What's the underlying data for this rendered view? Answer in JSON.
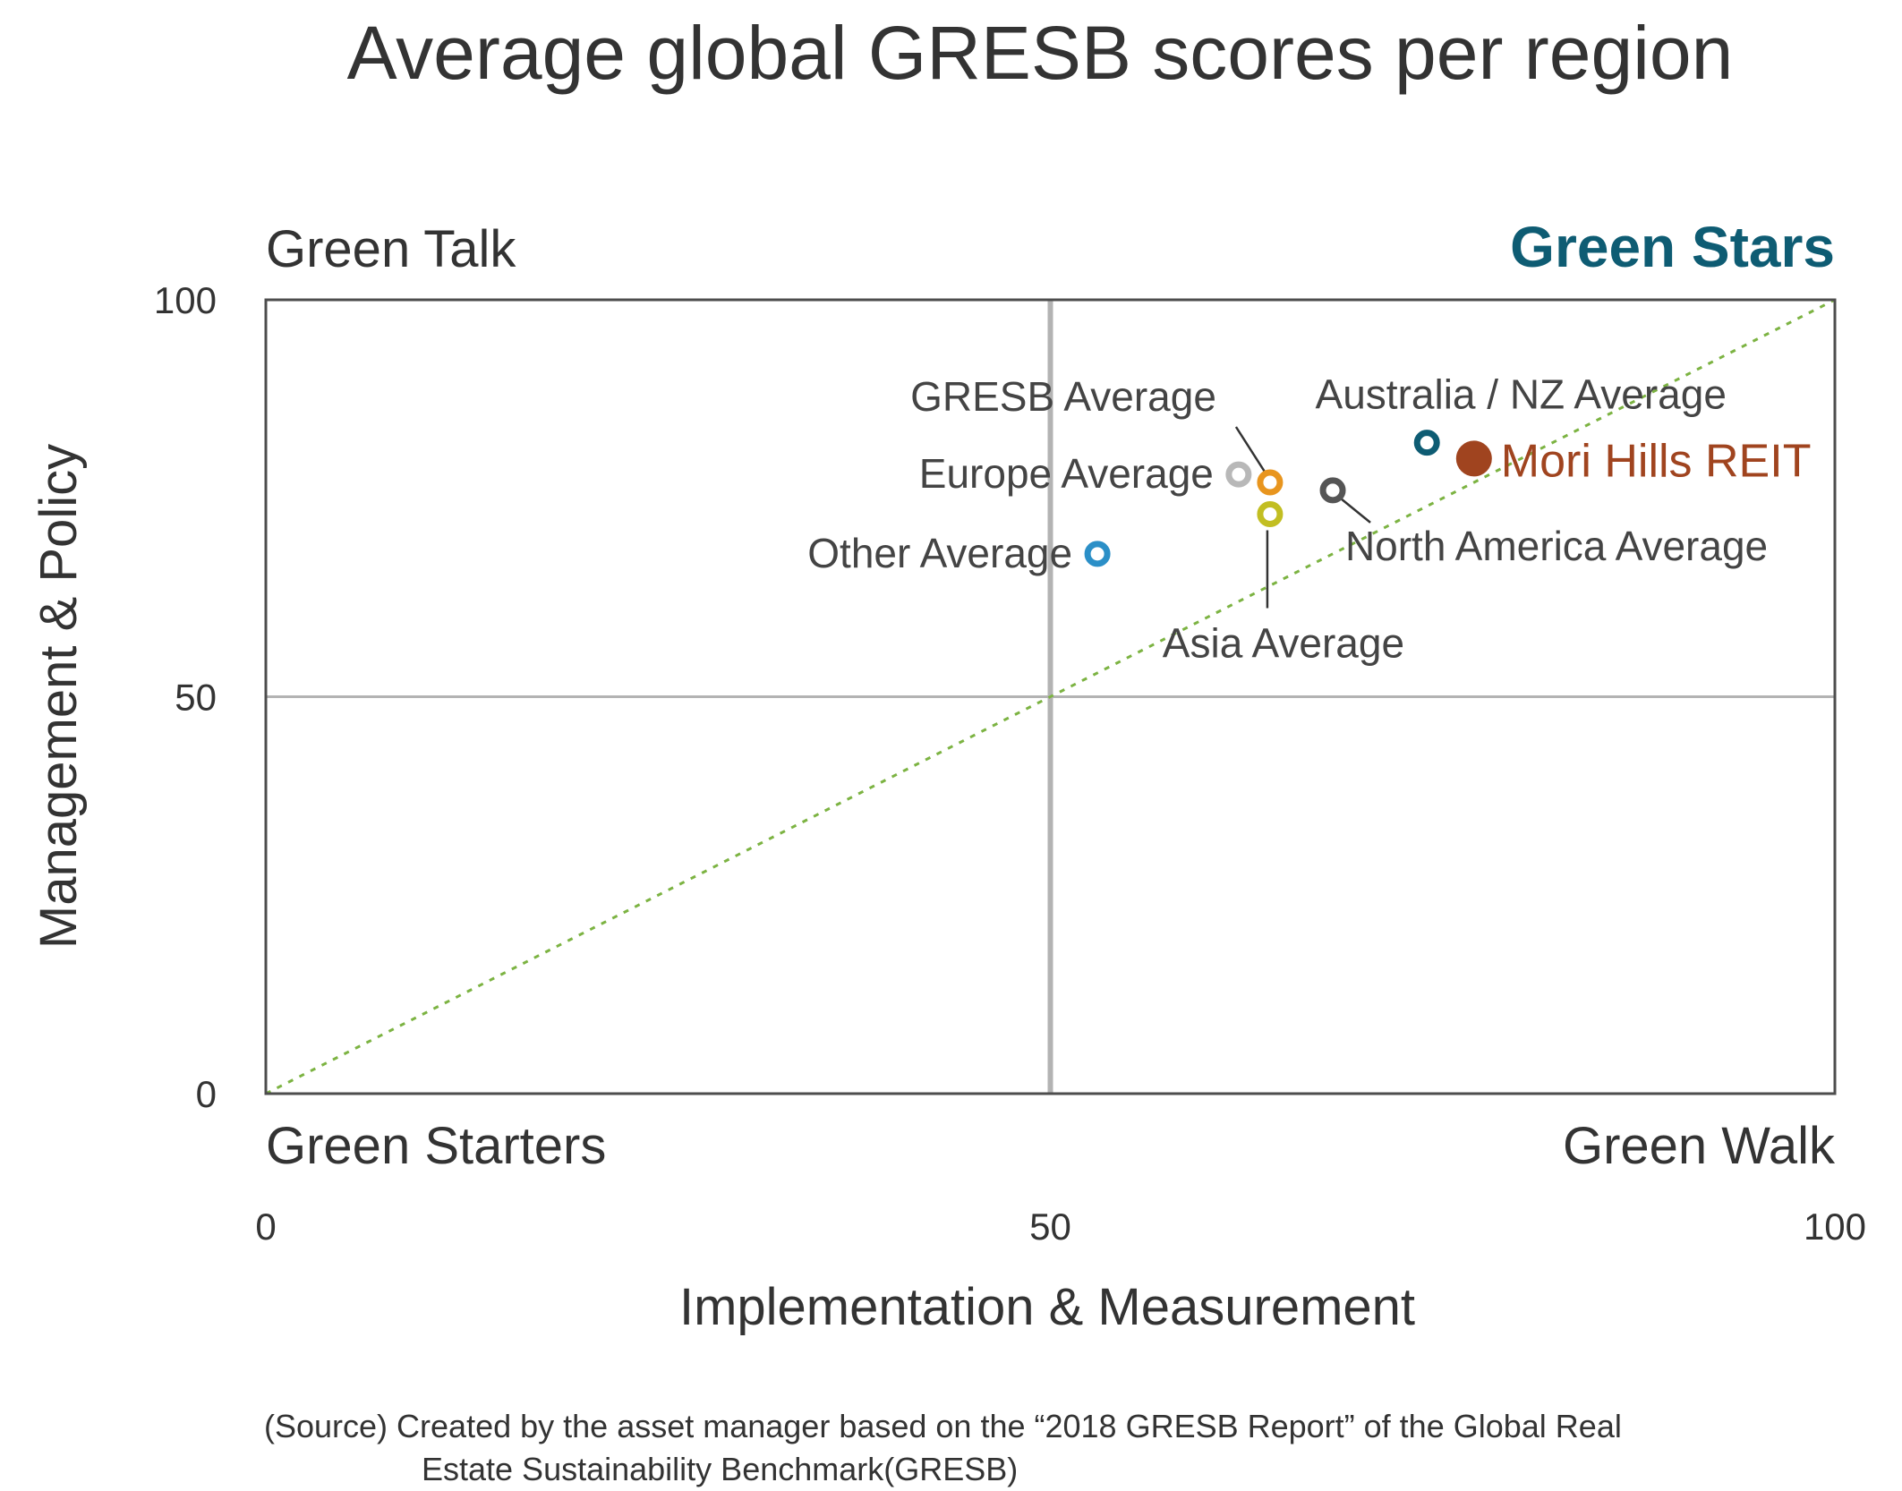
{
  "chart_data": {
    "type": "scatter",
    "title": "Average global GRESB scores per region",
    "xlabel": "Implementation & Measurement",
    "ylabel": "Management & Policy",
    "xlim": [
      0,
      100
    ],
    "ylim": [
      0,
      100
    ],
    "xticks": [
      "0",
      "50",
      "100"
    ],
    "yticks": [
      "0",
      "50",
      "100"
    ],
    "quadrants": {
      "top_left": "Green Talk",
      "top_right": "Green Stars",
      "bottom_left": "Green Starters",
      "bottom_right": "Green Walk"
    },
    "reference_lines": {
      "vertical_x": 50,
      "horizontal_y": 50,
      "diagonal": "y = x (dotted)"
    },
    "grid": false,
    "series": [
      {
        "name": "GRESB Average",
        "x": 64,
        "y": 77,
        "color": "#E8951E",
        "marker": "ring"
      },
      {
        "name": "Europe Average",
        "x": 62,
        "y": 78,
        "color": "#B8B8B8",
        "marker": "ring"
      },
      {
        "name": "Other Average",
        "x": 53,
        "y": 68,
        "color": "#2B8FC7",
        "marker": "ring"
      },
      {
        "name": "Asia Average",
        "x": 64,
        "y": 73,
        "color": "#C2BE22",
        "marker": "ring"
      },
      {
        "name": "North America Average",
        "x": 68,
        "y": 76,
        "color": "#555555",
        "marker": "ring"
      },
      {
        "name": "Australia / NZ Average",
        "x": 74,
        "y": 82,
        "color": "#0E5C73",
        "marker": "ring"
      },
      {
        "name": "Mori Hills REIT",
        "x": 77,
        "y": 80,
        "color": "#A0441F",
        "marker": "filled"
      }
    ],
    "colors": {
      "green_stars": "#0E5C73",
      "mori_label": "#A0441F",
      "diagonal": "#7CB342",
      "quadrant_lines": "#B3B3B3",
      "frame": "#4D4D4D"
    }
  },
  "source": {
    "line1": "(Source) Created by the asset manager based on the “2018 GRESB Report” of the Global Real",
    "line2": "Estate Sustainability Benchmark(GRESB)"
  }
}
